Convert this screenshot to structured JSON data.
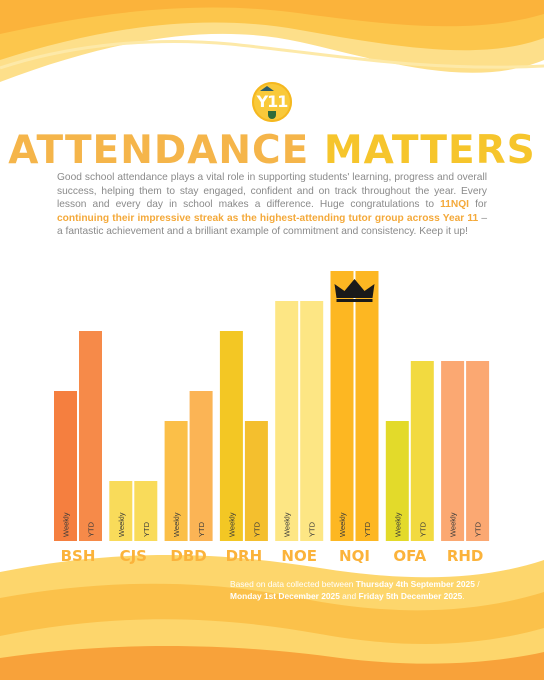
{
  "header": {
    "logo_text": "Y11",
    "title_part1": "ATTENDANCE",
    "title_part2": "MATTERS"
  },
  "intro": {
    "text_1": "Good school attendance plays a vital role in supporting students' learning, progress and overall success, helping them to stay engaged, confident and on track throughout the year. Every lesson and every day in school makes a difference. Huge congratulations to ",
    "highlight_group": "11NQI",
    "text_2": " for ",
    "highlight_streak": "continuing their impressive streak as the highest-attending tutor group across Year 11",
    "text_3": " – a fantastic achievement and a brilliant example of commitment and consistency. Keep it up!"
  },
  "chart_data": {
    "type": "bar",
    "categories": [
      "BSH",
      "CJS",
      "DBD",
      "DRH",
      "NOE",
      "NQI",
      "OFA",
      "RHD"
    ],
    "series": [
      {
        "name": "Weekly",
        "values": [
          5,
          2,
          4,
          7,
          8,
          9,
          4,
          6
        ]
      },
      {
        "name": "YTD",
        "values": [
          7,
          2,
          5,
          4,
          8,
          9,
          6,
          6
        ]
      }
    ],
    "bar_labels": [
      "Weekly",
      "YTD"
    ],
    "colors": {
      "BSH": [
        "#f57f3f",
        "#f68a49"
      ],
      "CJS": [
        "#f9db5a",
        "#f9db5a"
      ],
      "DBD": [
        "#fbbf48",
        "#fbb455"
      ],
      "DRH": [
        "#f3c724",
        "#f4bf2e"
      ],
      "NOE": [
        "#fde684",
        "#fde684"
      ],
      "NQI": [
        "#fdb722",
        "#fdb722"
      ],
      "OFA": [
        "#e3da2a",
        "#f2da40"
      ],
      "RHD": [
        "#fba872",
        "#fba872"
      ]
    },
    "highlight_category": "NQI",
    "highlight_icon": "crown-icon",
    "title": "",
    "xlabel": "",
    "ylabel": "",
    "grid": false
  },
  "footnote": {
    "text_1": "Based on data collected between ",
    "date_1": "Thursday 4th September 2025",
    "text_2": " / ",
    "date_2": "Monday 1st December 2025",
    "text_3": " and ",
    "date_3": "Friday 5th December 2025",
    "text_4": "."
  }
}
